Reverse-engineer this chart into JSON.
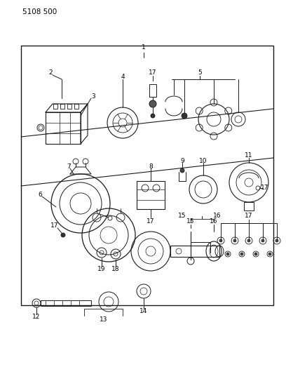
{
  "bg_color": "#ffffff",
  "line_color": "#1a1a1a",
  "part_number_text": "5108 500",
  "fig_width": 4.08,
  "fig_height": 5.33,
  "dpi": 100,
  "font_size_label": 6.5,
  "font_size_partnum": 7.5
}
